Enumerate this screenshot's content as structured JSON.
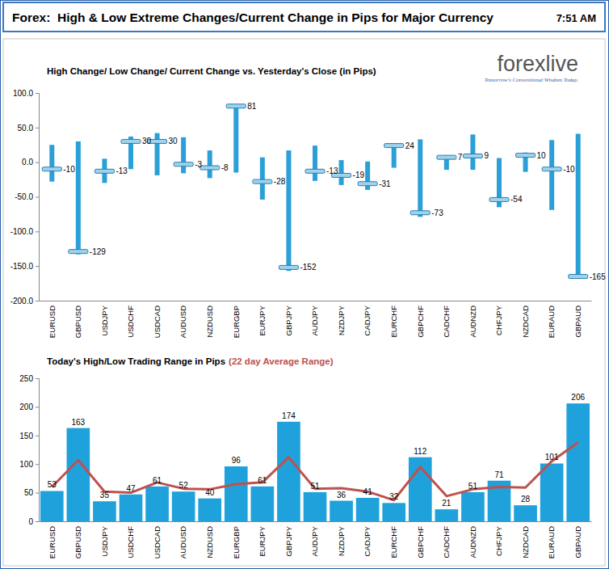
{
  "page": {
    "title": "Forex:  High & Low Extreme Changes/Current Change in Pips for Major Currency",
    "time": "7:51 AM",
    "logo": "forexlive",
    "tagline": "Tomorrow's Conventional Wisdom Today."
  },
  "chart_data": [
    {
      "type": "range",
      "title": "High Change/ Low Change/ Current Change vs. Yesterday's Close (in Pips)",
      "categories": [
        "EURUSD",
        "GBPUSD",
        "USDJPY",
        "USDCHF",
        "USDCAD",
        "AUDUSD",
        "NZDUSD",
        "EURGBP",
        "EURJPY",
        "GBPJPY",
        "AUDJPY",
        "NZDJPY",
        "CADJPY",
        "EURCHF",
        "GBPCHF",
        "CADCHF",
        "AUDNZD",
        "CHFJPY",
        "NZDCAD",
        "EURAUD",
        "GBPAUD"
      ],
      "values": [
        -10,
        -129,
        -13,
        30,
        30,
        -3,
        -8,
        81,
        -28,
        -152,
        -13,
        -19,
        -31,
        24,
        -73,
        7,
        9,
        -54,
        10,
        -10,
        -165
      ],
      "high": [
        25,
        30,
        5,
        37,
        42,
        36,
        17,
        81,
        7,
        17,
        24,
        3,
        1,
        24,
        33,
        10,
        40,
        6,
        14,
        32,
        41
      ],
      "low": [
        -28,
        -133,
        -30,
        -10,
        -19,
        -16,
        -23,
        -15,
        -54,
        -157,
        -27,
        -33,
        -40,
        -8,
        -79,
        -11,
        -11,
        -65,
        -14,
        -69,
        -165
      ],
      "color": "#2a9fd8",
      "data_labels": true,
      "grid": false,
      "ylim": [
        -200,
        100
      ],
      "yticks": [
        {
          "value": -200,
          "label": "-200.0"
        },
        {
          "value": -150,
          "label": "-150.0"
        },
        {
          "value": -100,
          "label": "-100.0"
        },
        {
          "value": -50,
          "label": "-50.0"
        },
        {
          "value": 0,
          "label": "0.0"
        },
        {
          "value": 50,
          "label": "50.0"
        },
        {
          "value": 100,
          "label": "100.0"
        }
      ]
    },
    {
      "type": "bar",
      "title": "Today's High/Low Trading Range in Pips",
      "subtitle": "(22 day Average Range)",
      "categories": [
        "EURUSD",
        "GBPUSD",
        "USDJPY",
        "USDCHF",
        "USDCAD",
        "AUDUSD",
        "NZDUSD",
        "EURGBP",
        "EURJPY",
        "GBPJPY",
        "AUDJPY",
        "NZDJPY",
        "CADJPY",
        "EURCHF",
        "GBPCHF",
        "CADCHF",
        "AUDNZD",
        "CHFJPY",
        "NZDCAD",
        "EURAUD",
        "GBPAUD"
      ],
      "series": [
        {
          "type": "bar",
          "color": "#1fa2dc",
          "data_labels": true,
          "values": [
            53,
            163,
            35,
            47,
            61,
            52,
            40,
            96,
            61,
            174,
            51,
            36,
            41,
            32,
            112,
            21,
            51,
            71,
            28,
            101,
            206
          ]
        },
        {
          "type": "line",
          "color": "#c0504d",
          "values": [
            60,
            107,
            52,
            50,
            68,
            57,
            56,
            65,
            68,
            112,
            57,
            58,
            52,
            37,
            95,
            44,
            56,
            60,
            59,
            105,
            138
          ]
        }
      ],
      "grid": false,
      "ylim": [
        0,
        250
      ],
      "yticks": [
        0,
        50,
        100,
        150,
        200,
        250
      ]
    }
  ]
}
